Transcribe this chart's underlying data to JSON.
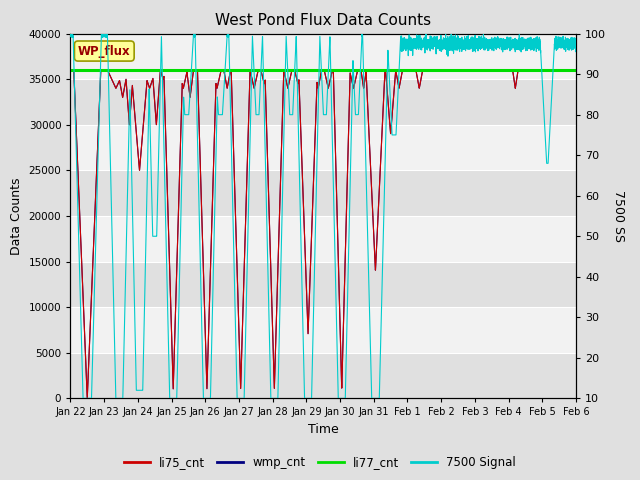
{
  "title": "West Pond Flux Data Counts",
  "xlabel": "Time",
  "ylabel_left": "Data Counts",
  "ylabel_right": "7500 SS",
  "ylim_left": [
    0,
    40000
  ],
  "ylim_right": [
    10,
    100
  ],
  "yticks_left": [
    0,
    5000,
    10000,
    15000,
    20000,
    25000,
    30000,
    35000,
    40000
  ],
  "yticks_right": [
    10,
    20,
    30,
    40,
    50,
    60,
    70,
    80,
    90,
    100
  ],
  "xtick_labels": [
    "Jan 22",
    "Jan 23",
    "Jan 24",
    "Jan 25",
    "Jan 26",
    "Jan 27",
    "Jan 28",
    "Jan 29",
    "Jan 30",
    "Jan 31",
    "Feb 1",
    "Feb 2",
    "Feb 3",
    "Feb 4",
    "Feb 5",
    "Feb 6"
  ],
  "bg_color": "#e0e0e0",
  "plot_bg_color": "#f2f2f2",
  "band_light": "#f2f2f2",
  "band_dark": "#e0e0e0",
  "grid_color": "#ffffff",
  "wp_flux_box_color": "#ffff99",
  "wp_flux_box_edge": "#999900",
  "series_li75_color": "#cc0000",
  "series_wmp_color": "#000080",
  "series_li77_color": "#00dd00",
  "series_7500_color": "#00cccc",
  "li77_value": 36000,
  "legend_labels": [
    "li75_cnt",
    "wmp_cnt",
    "li77_cnt",
    "7500 Signal"
  ],
  "legend_colors": [
    "#cc0000",
    "#000080",
    "#00dd00",
    "#00cccc"
  ]
}
